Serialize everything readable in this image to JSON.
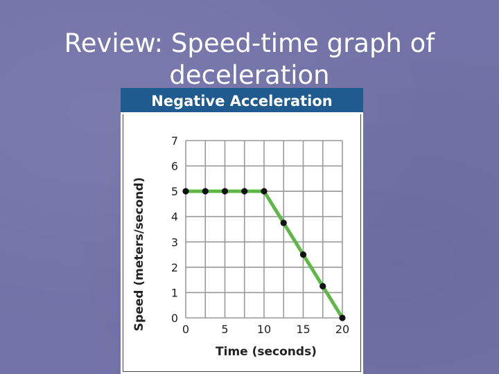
{
  "slide": {
    "title_line1": "Review: Speed-time graph of",
    "title_line2": "deceleration"
  },
  "colors": {
    "background": "#7272a8",
    "header": "#1f5b8f",
    "line": "#5db845",
    "point": "#111111",
    "grid": "#999999"
  },
  "chart_data": {
    "type": "line",
    "title": "Negative Acceleration",
    "xlabel": "Time (seconds)",
    "ylabel": "Speed (meters/second)",
    "xlim": [
      0,
      20
    ],
    "ylim": [
      0,
      7
    ],
    "x_ticks": [
      0,
      5,
      10,
      15,
      20
    ],
    "y_ticks": [
      0,
      1,
      2,
      3,
      4,
      5,
      6,
      7
    ],
    "x_grid_step": 2.5,
    "y_grid_step": 1,
    "grid": true,
    "series": [
      {
        "x": [
          0,
          2.5,
          5,
          7.5,
          10,
          12.5,
          15,
          17.5,
          20
        ],
        "y": [
          5,
          5,
          5,
          5,
          5,
          3.75,
          2.5,
          1.25,
          0
        ]
      }
    ]
  }
}
